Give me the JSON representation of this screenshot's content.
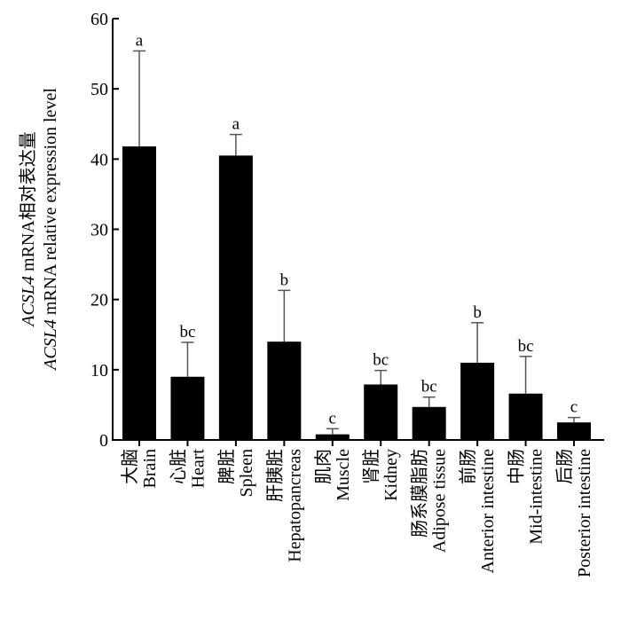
{
  "chart_data": {
    "type": "bar",
    "categories": [
      {
        "cn": "大脑",
        "en": "Brain"
      },
      {
        "cn": "心脏",
        "en": "Heart"
      },
      {
        "cn": "脾脏",
        "en": "Spleen"
      },
      {
        "cn": "肝胰脏",
        "en": "Hepatopancreas"
      },
      {
        "cn": "肌肉",
        "en": "Muscle"
      },
      {
        "cn": "肾脏",
        "en": "Kidney"
      },
      {
        "cn": "肠系膜脂肪",
        "en": "Adipose tissue"
      },
      {
        "cn": "前肠",
        "en": "Anterior intestine"
      },
      {
        "cn": "中肠",
        "en": "Mid-intestine"
      },
      {
        "cn": "后肠",
        "en": "Posterior intestine"
      }
    ],
    "values": [
      41.8,
      9.0,
      40.5,
      14.0,
      0.8,
      7.9,
      4.7,
      11.0,
      6.6,
      2.5
    ],
    "errors": [
      13.6,
      4.9,
      3.0,
      7.3,
      0.8,
      2.0,
      1.4,
      5.7,
      5.3,
      0.7
    ],
    "significance": [
      "a",
      "bc",
      "a",
      "b",
      "c",
      "bc",
      "bc",
      "b",
      "bc",
      "c"
    ],
    "ylabel_line1_gene": "ACSL4",
    "ylabel_line1_rest": " mRNA相对表达量",
    "ylabel_line2_gene": "ACSL4",
    "ylabel_line2_rest": " mRNA relative expression level",
    "ylim": [
      0,
      60
    ],
    "yticks": [
      0,
      10,
      20,
      30,
      40,
      50,
      60
    ],
    "grid": false,
    "bar_color": "#000000"
  }
}
